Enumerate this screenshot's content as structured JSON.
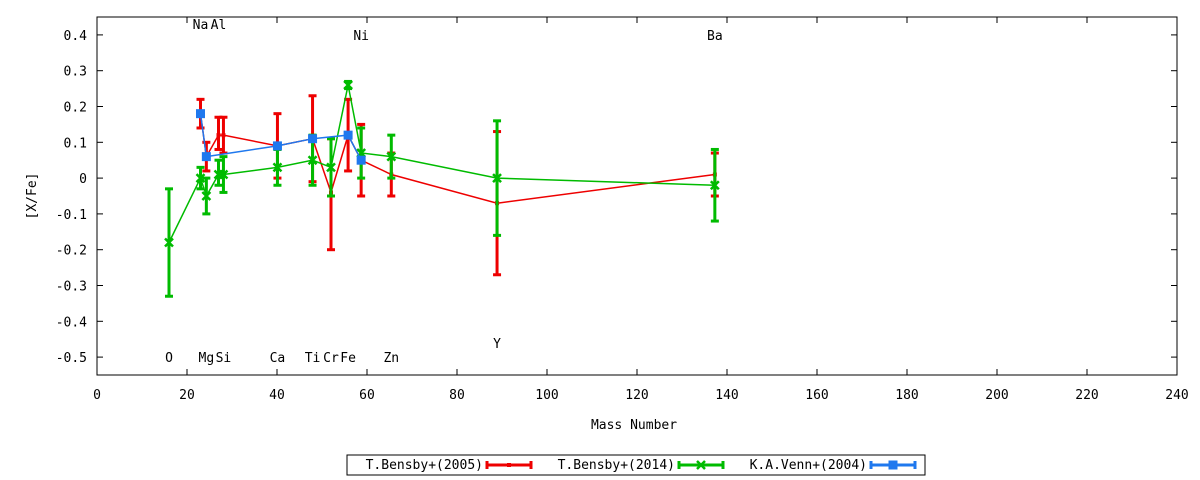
{
  "chart_data": {
    "type": "line",
    "xlabel": "Mass Number",
    "ylabel": "[X/Fe]",
    "xlim": [
      0,
      240
    ],
    "ylim": [
      -0.55,
      0.45
    ],
    "xticks": [
      0,
      20,
      40,
      60,
      80,
      100,
      120,
      140,
      160,
      180,
      200,
      220,
      240
    ],
    "yticks": [
      -0.5,
      -0.4,
      -0.3,
      -0.2,
      -0.1,
      0,
      0.1,
      0.2,
      0.3,
      0.4
    ],
    "grid": false,
    "legend_position": "bottom-center",
    "element_labels": [
      {
        "text": "O",
        "x": 16,
        "y": -0.5
      },
      {
        "text": "Na",
        "x": 23,
        "y": 0.43
      },
      {
        "text": "Al",
        "x": 27,
        "y": 0.43
      },
      {
        "text": "Mg",
        "x": 24.3,
        "y": -0.5
      },
      {
        "text": "Si",
        "x": 28.1,
        "y": -0.5
      },
      {
        "text": "Ca",
        "x": 40.1,
        "y": -0.5
      },
      {
        "text": "Ti",
        "x": 47.9,
        "y": -0.5
      },
      {
        "text": "Cr",
        "x": 52,
        "y": -0.5
      },
      {
        "text": "Fe",
        "x": 55.8,
        "y": -0.5
      },
      {
        "text": "Ni",
        "x": 58.7,
        "y": 0.4
      },
      {
        "text": "Zn",
        "x": 65.4,
        "y": -0.5
      },
      {
        "text": "Y",
        "x": 88.9,
        "y": -0.46
      },
      {
        "text": "Ba",
        "x": 137.3,
        "y": 0.4
      }
    ],
    "series": [
      {
        "name": "T.Bensby+(2005)",
        "color": "#ee0000",
        "points": [
          {
            "x": 23,
            "y": 0.18,
            "lo": 0.14,
            "hi": 0.22
          },
          {
            "x": 24.3,
            "y": 0.06,
            "lo": 0.02,
            "hi": 0.1
          },
          {
            "x": 27,
            "y": 0.12,
            "lo": 0.08,
            "hi": 0.17
          },
          {
            "x": 28.1,
            "y": 0.12,
            "lo": 0.07,
            "hi": 0.17
          },
          {
            "x": 40.1,
            "y": 0.09,
            "lo": 0.0,
            "hi": 0.18
          },
          {
            "x": 47.9,
            "y": 0.11,
            "lo": -0.01,
            "hi": 0.23
          },
          {
            "x": 52,
            "y": -0.04,
            "lo": -0.2,
            "hi": 0.11
          },
          {
            "x": 55.8,
            "y": 0.12,
            "lo": 0.02,
            "hi": 0.22
          },
          {
            "x": 58.7,
            "y": 0.05,
            "lo": -0.05,
            "hi": 0.15
          },
          {
            "x": 65.4,
            "y": 0.01,
            "lo": -0.05,
            "hi": 0.07
          },
          {
            "x": 88.9,
            "y": -0.07,
            "lo": -0.27,
            "hi": 0.13
          },
          {
            "x": 137.3,
            "y": 0.01,
            "lo": -0.05,
            "hi": 0.07
          }
        ]
      },
      {
        "name": "T.Bensby+(2014)",
        "color": "#00bb00",
        "points": [
          {
            "x": 16,
            "y": -0.18,
            "lo": -0.33,
            "hi": -0.03
          },
          {
            "x": 23,
            "y": 0.0,
            "lo": -0.03,
            "hi": 0.03
          },
          {
            "x": 24.3,
            "y": -0.05,
            "lo": -0.1,
            "hi": 0.0
          },
          {
            "x": 27,
            "y": 0.01,
            "lo": -0.02,
            "hi": 0.05
          },
          {
            "x": 28.1,
            "y": 0.01,
            "lo": -0.04,
            "hi": 0.06
          },
          {
            "x": 40.1,
            "y": 0.03,
            "lo": -0.02,
            "hi": 0.08
          },
          {
            "x": 47.9,
            "y": 0.05,
            "lo": -0.02,
            "hi": 0.12
          },
          {
            "x": 52,
            "y": 0.03,
            "lo": -0.05,
            "hi": 0.11
          },
          {
            "x": 55.8,
            "y": 0.26,
            "lo": 0.25,
            "hi": 0.27
          },
          {
            "x": 58.7,
            "y": 0.07,
            "lo": 0.0,
            "hi": 0.14
          },
          {
            "x": 65.4,
            "y": 0.06,
            "lo": 0.0,
            "hi": 0.12
          },
          {
            "x": 88.9,
            "y": 0.0,
            "lo": -0.16,
            "hi": 0.16
          },
          {
            "x": 137.3,
            "y": -0.02,
            "lo": -0.12,
            "hi": 0.08
          }
        ]
      },
      {
        "name": "K.A.Venn+(2004)",
        "color": "#1f78ee",
        "points": [
          {
            "x": 23,
            "y": 0.18
          },
          {
            "x": 24.3,
            "y": 0.06
          },
          {
            "x": 40.1,
            "y": 0.09
          },
          {
            "x": 47.9,
            "y": 0.11
          },
          {
            "x": 55.8,
            "y": 0.12
          },
          {
            "x": 58.7,
            "y": 0.05
          }
        ]
      }
    ]
  }
}
